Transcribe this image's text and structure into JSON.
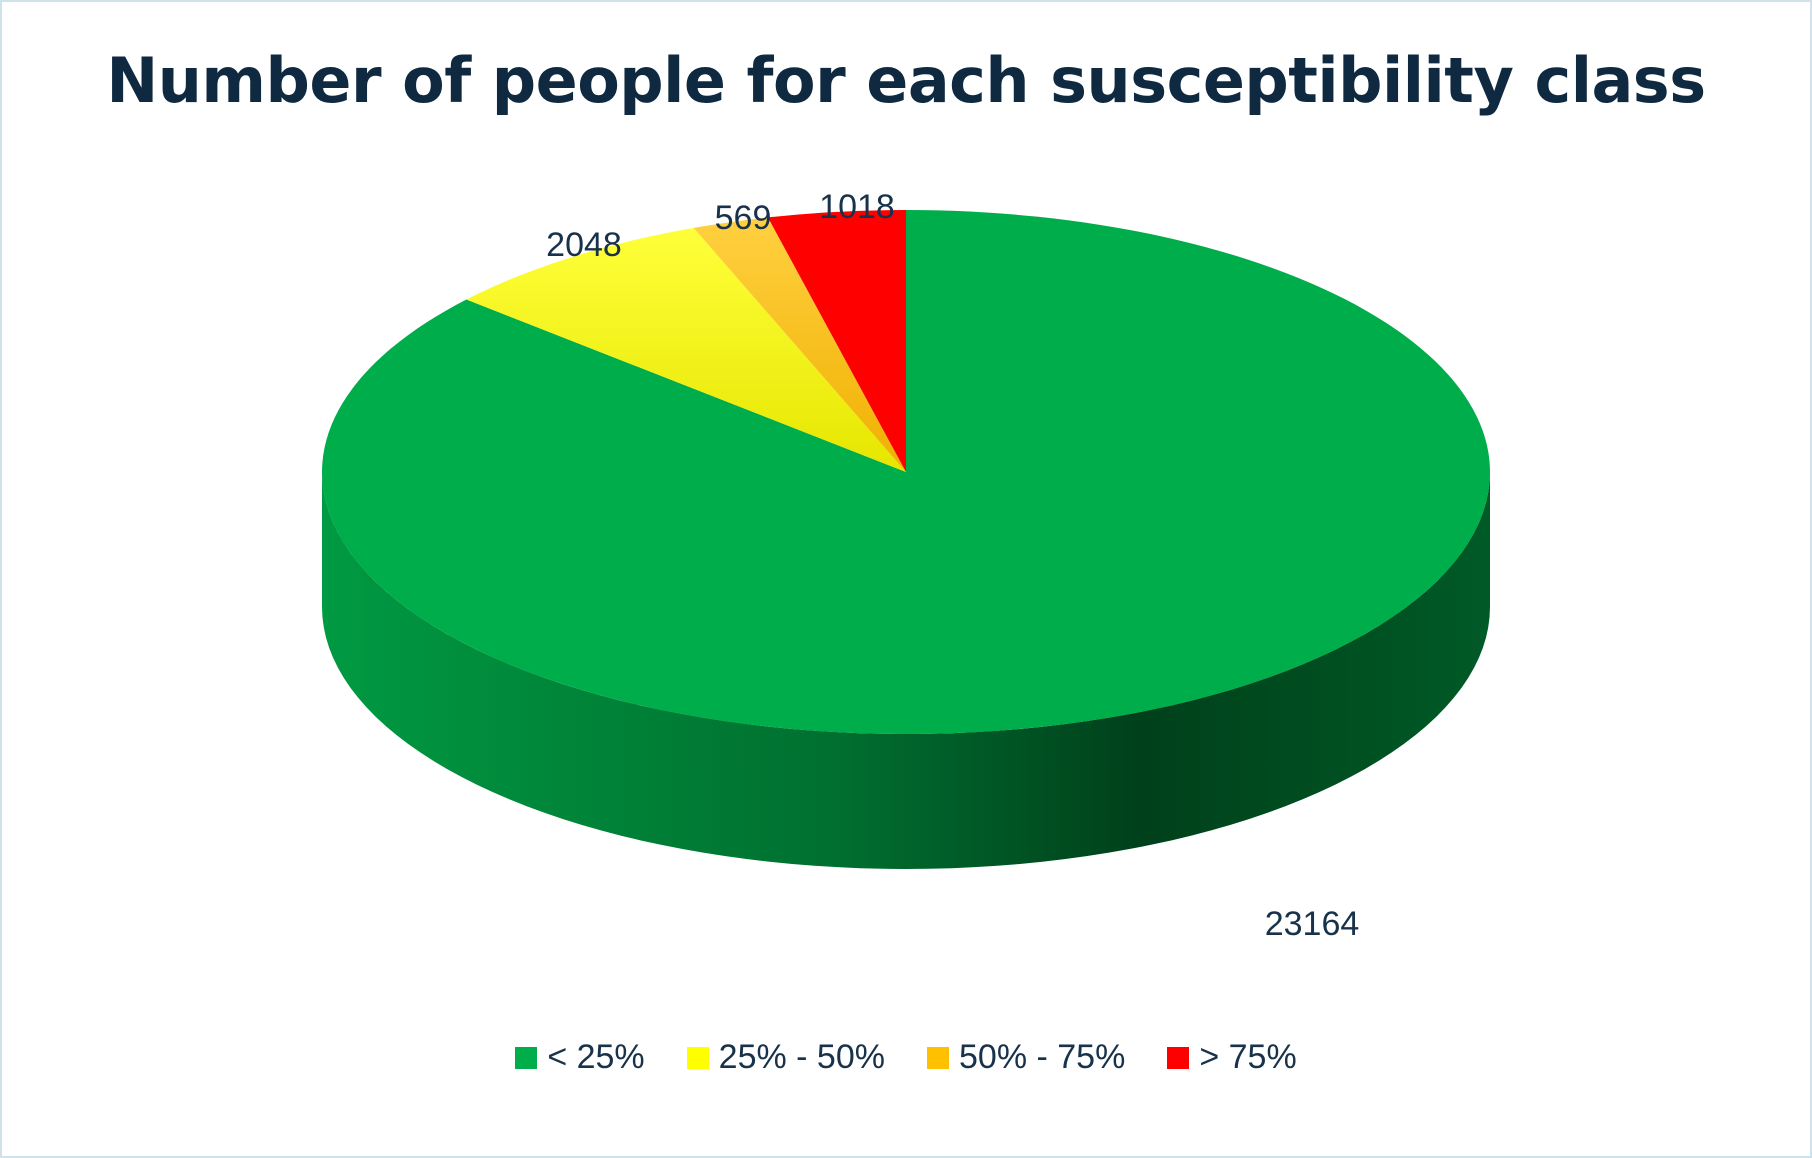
{
  "chart_data": {
    "type": "pie",
    "title": "Number of people for each susceptibility class",
    "categories": [
      "< 25%",
      "25% - 50%",
      "50% - 75%",
      "> 75%"
    ],
    "values": [
      23164,
      2048,
      569,
      1018
    ],
    "colors": [
      "#00ad4b",
      "#ffff00",
      "#ffc000",
      "#ff0000"
    ],
    "data_labels": [
      "23164",
      "2048",
      "569",
      "1018"
    ],
    "legend_position": "bottom",
    "style": "3d"
  }
}
